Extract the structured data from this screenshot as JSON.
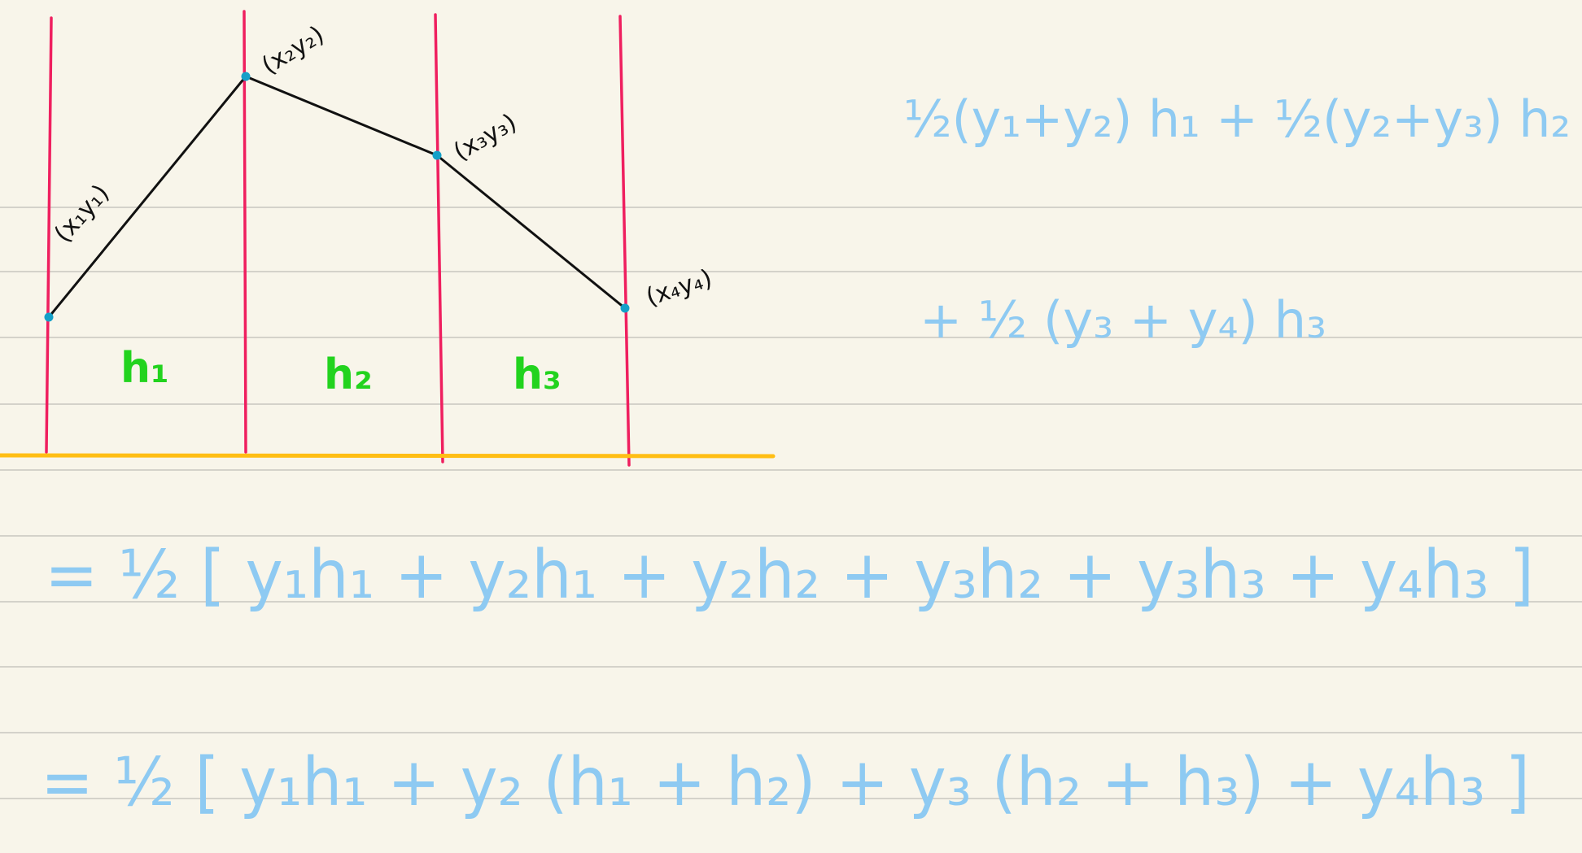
{
  "colors": {
    "paper": "#f8f5ea",
    "ruled_line": "#d4d2ca",
    "vertical_line": "#ef1f5f",
    "baseline": "#ffbe14",
    "curve": "#111111",
    "point": "#14a0c8",
    "strip_label": "#22d31e",
    "equation": "#8ecaf2"
  },
  "sketch": {
    "points": [
      {
        "label": "(x₁y₁)"
      },
      {
        "label": "(x₂y₂)"
      },
      {
        "label": "(x₃y₃)"
      },
      {
        "label": "(x₄y₄)"
      }
    ],
    "strips": [
      {
        "label": "h₁"
      },
      {
        "label": "h₂"
      },
      {
        "label": "h₃"
      }
    ]
  },
  "equations": {
    "line1": "½(y₁+y₂) h₁  + ½(y₂+y₃) h₂",
    "line2": "+ ½ (y₃ + y₄) h₃",
    "line3": "= ½ [ y₁h₁  + y₂h₁ + y₂h₂ + y₃h₂ + y₃h₃ + y₄h₃ ]",
    "line4": "= ½ [ y₁h₁  + y₂ (h₁ + h₂) + y₃ (h₂ + h₃) + y₄h₃ ]"
  }
}
